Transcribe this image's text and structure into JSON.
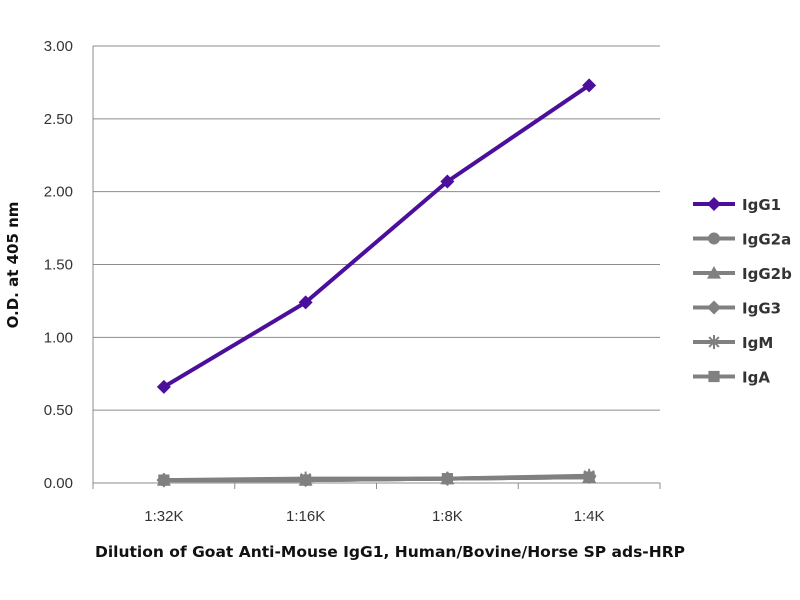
{
  "chart_data": {
    "type": "line",
    "title": "",
    "xlabel": "Dilution of Goat Anti-Mouse IgG1, Human/Bovine/Horse SP ads-HRP",
    "ylabel": "O.D. at 405 nm",
    "categories": [
      "1:32K",
      "1:16K",
      "1:8K",
      "1:4K"
    ],
    "ylim": [
      0,
      3.0
    ],
    "yticks": [
      "0.00",
      "0.50",
      "1.00",
      "1.50",
      "2.00",
      "2.50",
      "3.00"
    ],
    "grid": true,
    "legend_position": "right",
    "series": [
      {
        "name": "IgG1",
        "values": [
          0.66,
          1.24,
          2.07,
          2.73
        ],
        "color": "#4b0f9c",
        "marker": "diamond"
      },
      {
        "name": "IgG2a",
        "values": [
          0.02,
          0.02,
          0.03,
          0.04
        ],
        "color": "#808080",
        "marker": "circle"
      },
      {
        "name": "IgG2b",
        "values": [
          0.02,
          0.02,
          0.03,
          0.04
        ],
        "color": "#808080",
        "marker": "triangle"
      },
      {
        "name": "IgG3",
        "values": [
          0.02,
          0.02,
          0.03,
          0.04
        ],
        "color": "#808080",
        "marker": "diamond"
      },
      {
        "name": "IgM",
        "values": [
          0.02,
          0.03,
          0.03,
          0.05
        ],
        "color": "#808080",
        "marker": "star"
      },
      {
        "name": "IgA",
        "values": [
          0.02,
          0.02,
          0.03,
          0.04
        ],
        "color": "#808080",
        "marker": "square"
      }
    ]
  }
}
